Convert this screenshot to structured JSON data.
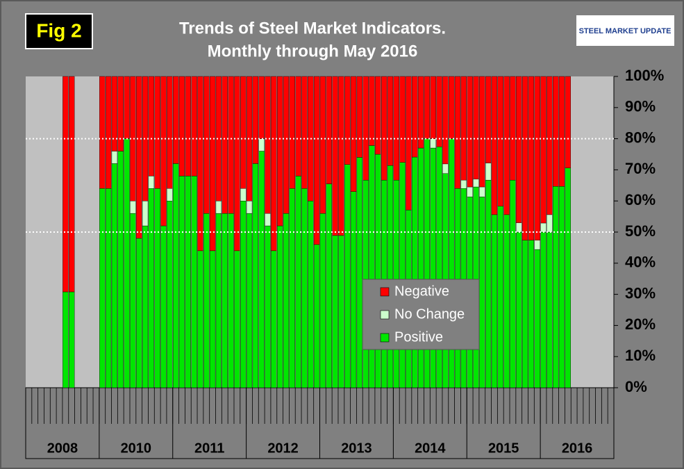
{
  "chart_data": {
    "type": "stacked_bar",
    "figure_label": "Fig 2",
    "title": "Trends of Steel Market Indicators.",
    "subtitle": "Monthly through May 2016",
    "logo": "STEEL MARKET UPDATE",
    "categories": [
      null,
      null,
      null,
      null,
      null,
      null,
      null,
      null,
      null,
      null,
      null,
      null,
      null,
      null,
      null,
      null,
      null,
      null,
      null,
      null,
      null,
      null,
      null,
      null,
      null,
      null,
      null,
      null,
      null,
      null,
      null,
      null,
      null,
      null,
      null,
      null,
      null,
      null,
      null,
      null,
      null,
      null,
      null,
      null,
      null,
      null,
      null,
      null,
      null,
      null,
      null,
      null,
      null,
      null,
      null,
      null,
      null,
      null,
      null,
      null,
      null,
      null,
      null,
      null,
      null,
      null,
      null,
      null,
      null,
      null,
      null,
      null,
      null,
      null,
      null,
      null,
      null,
      null,
      null,
      null,
      null,
      null,
      null,
      null,
      null,
      null,
      null,
      null,
      null,
      null,
      null,
      null,
      null,
      null,
      null,
      null
    ],
    "x_groups": [
      "2008",
      "2010",
      "2011",
      "2012",
      "2013",
      "2014",
      "2015",
      "2016"
    ],
    "series": [
      {
        "name": "Positive",
        "color": "#00e600",
        "values": [
          null,
          null,
          null,
          null,
          null,
          null,
          30.8,
          30.8,
          null,
          null,
          null,
          null,
          64,
          64,
          72,
          76,
          80,
          56,
          48,
          52,
          64,
          64,
          52,
          60,
          72,
          68,
          68,
          68,
          44,
          56,
          44,
          56,
          56,
          56,
          44,
          60,
          56,
          72,
          76,
          52,
          44,
          52,
          56,
          64,
          68,
          64,
          60,
          46,
          56,
          65.5,
          48.9,
          48.9,
          71.7,
          63,
          74,
          66.7,
          77.8,
          75,
          66.7,
          71.4,
          66.7,
          72.4,
          57.1,
          74.1,
          77,
          80,
          77,
          77.4,
          68.8,
          80,
          64,
          64,
          61.3,
          64.5,
          61.3,
          66.7,
          55.6,
          58.3,
          55.6,
          66.7,
          50,
          47.4,
          47.4,
          44.4,
          50,
          50,
          64.7,
          64.7,
          70.6,
          null,
          null,
          null,
          null,
          null,
          null,
          null
        ]
      },
      {
        "name": "No Change",
        "color": "#ccffcc",
        "values": [
          null,
          null,
          null,
          null,
          null,
          null,
          0,
          0,
          null,
          null,
          null,
          null,
          0,
          0,
          4,
          0,
          0,
          4,
          0,
          8,
          4,
          0,
          0,
          4,
          0,
          0,
          0,
          0,
          0,
          0,
          0,
          4,
          0,
          0,
          0,
          4,
          4,
          0,
          4,
          4,
          0,
          0,
          0,
          0,
          0,
          0,
          0,
          0,
          0,
          0,
          0,
          0,
          0,
          0,
          0,
          0,
          0,
          0,
          0,
          0,
          0,
          0,
          0,
          0,
          0,
          0,
          3,
          0,
          3.1,
          0,
          0,
          2.7,
          3.2,
          2.5,
          3.2,
          5.5,
          0,
          0,
          0,
          0,
          3,
          0,
          0,
          3,
          2.9,
          5.6,
          0,
          0,
          0,
          null,
          null,
          null,
          null,
          null,
          null,
          null
        ]
      },
      {
        "name": "Negative",
        "color": "#ff0000",
        "values": [
          null,
          null,
          null,
          null,
          null,
          null,
          69.2,
          69.2,
          null,
          null,
          null,
          null,
          36,
          36,
          24,
          24,
          20,
          40,
          52,
          40,
          32,
          36,
          48,
          36,
          28,
          32,
          32,
          32,
          56,
          44,
          56,
          40,
          44,
          44,
          56,
          36,
          40,
          28,
          20,
          44,
          56,
          48,
          44,
          36,
          32,
          36,
          40,
          54,
          44,
          34.5,
          51.1,
          51.1,
          28.3,
          37,
          26,
          33.3,
          22.2,
          25,
          33.3,
          28.6,
          33.3,
          27.6,
          42.9,
          25.9,
          23,
          20,
          20,
          22.6,
          28.1,
          20,
          36,
          33.3,
          35.5,
          33,
          35.5,
          27.8,
          44.4,
          41.7,
          44.4,
          33.3,
          47,
          52.6,
          52.6,
          52.6,
          47.1,
          44.4,
          35.3,
          35.3,
          29.4,
          null,
          null,
          null,
          null,
          null,
          null,
          null
        ]
      }
    ],
    "ylim": [
      0,
      100
    ],
    "yticks": [
      {
        "value": 0,
        "label": "0%"
      },
      {
        "value": 10,
        "label": "10%"
      },
      {
        "value": 20,
        "label": "20%"
      },
      {
        "value": 30,
        "label": "30%"
      },
      {
        "value": 40,
        "label": "40%"
      },
      {
        "value": 50,
        "label": "50%"
      },
      {
        "value": 60,
        "label": "60%"
      },
      {
        "value": 70,
        "label": "70%"
      },
      {
        "value": 80,
        "label": "80%"
      },
      {
        "value": 90,
        "label": "90%"
      },
      {
        "value": 100,
        "label": "100%"
      }
    ],
    "y_axis_side": "right",
    "reference_lines": [
      50,
      80
    ],
    "legend": "center-right"
  }
}
